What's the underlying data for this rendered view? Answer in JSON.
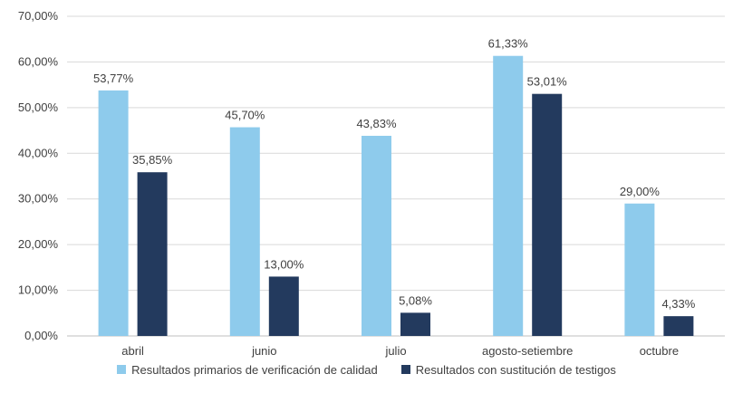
{
  "chart_data": {
    "type": "bar",
    "categories": [
      "abril",
      "junio",
      "julio",
      "agosto-setiembre",
      "octubre"
    ],
    "series": [
      {
        "name": "Resultados primarios de verificación de calidad",
        "color": "#8ecbec",
        "values": [
          53.77,
          45.7,
          43.83,
          61.33,
          29.0
        ],
        "labels": [
          "53,77%",
          "45,70%",
          "43,83%",
          "61,33%",
          "29,00%"
        ]
      },
      {
        "name": "Resultados con sustitución de testigos",
        "color": "#233a5e",
        "values": [
          35.85,
          13.0,
          5.08,
          53.01,
          4.33
        ],
        "labels": [
          "35,85%",
          "13,00%",
          "5,08%",
          "53,01%",
          "4,33%"
        ]
      }
    ],
    "ylim": [
      0,
      70
    ],
    "yticks": [
      0,
      10,
      20,
      30,
      40,
      50,
      60,
      70
    ],
    "ytick_labels": [
      "0,00%",
      "10,00%",
      "20,00%",
      "30,00%",
      "40,00%",
      "50,00%",
      "60,00%",
      "70,00%"
    ],
    "grid": true,
    "legend_position": "bottom"
  }
}
